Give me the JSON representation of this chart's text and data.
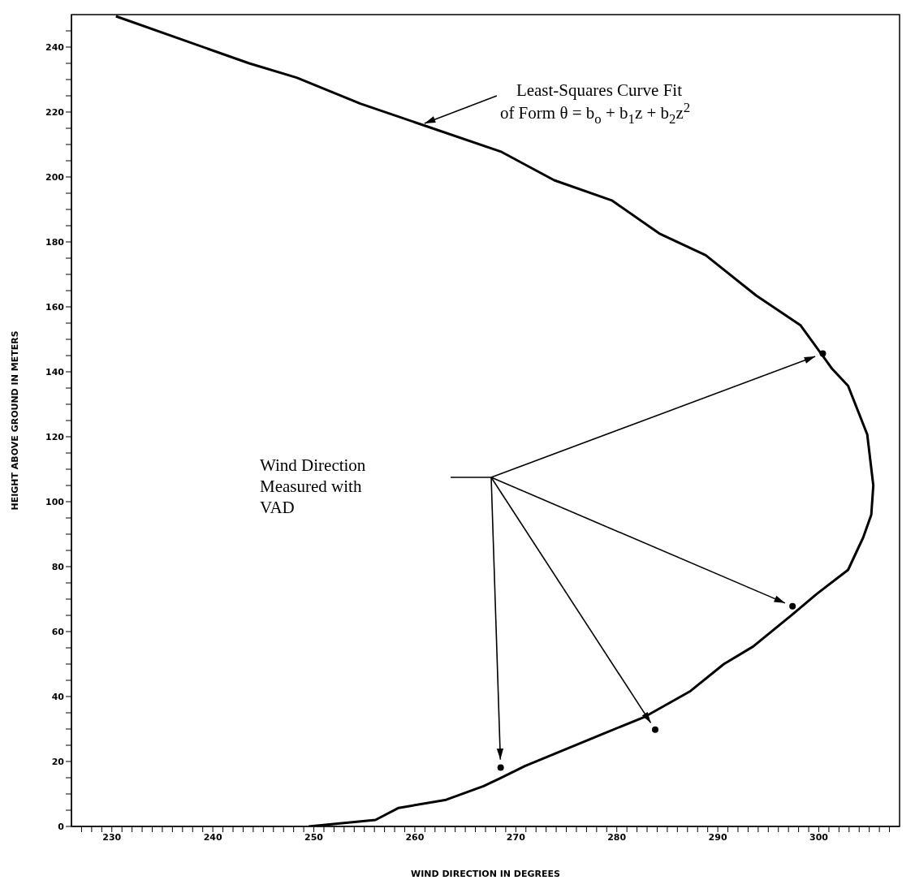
{
  "chart_data": {
    "type": "scatter",
    "xlabel": "WIND DIRECTION IN DEGREES",
    "ylabel": "HEIGHT ABOVE GROUND IN METERS",
    "xlim": [
      226,
      308
    ],
    "ylim": [
      0,
      250
    ],
    "xticks": [
      {
        "value": 227,
        "label": null
      },
      {
        "value": 228,
        "label": null
      },
      {
        "value": 229,
        "label": null
      },
      230,
      {
        "value": 231,
        "label": null
      },
      {
        "value": 232,
        "label": null
      },
      {
        "value": 233,
        "label": null
      },
      {
        "value": 234,
        "label": null
      },
      {
        "value": 235,
        "label": null
      },
      {
        "value": 236,
        "label": null
      },
      {
        "value": 237,
        "label": null
      },
      {
        "value": 238,
        "label": null
      },
      {
        "value": 239,
        "label": null
      },
      240,
      {
        "value": 241,
        "label": null
      },
      {
        "value": 242,
        "label": null
      },
      {
        "value": 243,
        "label": null
      },
      {
        "value": 244,
        "label": null
      },
      {
        "value": 245,
        "label": null
      },
      {
        "value": 246,
        "label": null
      },
      {
        "value": 247,
        "label": null
      },
      {
        "value": 248,
        "label": null
      },
      {
        "value": 249,
        "label": null
      },
      250,
      {
        "value": 251,
        "label": null
      },
      {
        "value": 252,
        "label": null
      },
      {
        "value": 253,
        "label": null
      },
      {
        "value": 254,
        "label": null
      },
      {
        "value": 255,
        "label": null
      },
      {
        "value": 256,
        "label": null
      },
      {
        "value": 257,
        "label": null
      },
      {
        "value": 258,
        "label": null
      },
      {
        "value": 259,
        "label": null
      },
      260,
      {
        "value": 261,
        "label": null
      },
      {
        "value": 262,
        "label": null
      },
      {
        "value": 263,
        "label": null
      },
      {
        "value": 264,
        "label": null
      },
      {
        "value": 265,
        "label": null
      },
      {
        "value": 266,
        "label": null
      },
      {
        "value": 267,
        "label": null
      },
      {
        "value": 268,
        "label": null
      },
      {
        "value": 269,
        "label": null
      },
      270,
      {
        "value": 271,
        "label": null
      },
      {
        "value": 272,
        "label": null
      },
      {
        "value": 273,
        "label": null
      },
      {
        "value": 274,
        "label": null
      },
      {
        "value": 275,
        "label": null
      },
      {
        "value": 276,
        "label": null
      },
      {
        "value": 277,
        "label": null
      },
      {
        "value": 278,
        "label": null
      },
      {
        "value": 279,
        "label": null
      },
      280,
      {
        "value": 281,
        "label": null
      },
      {
        "value": 282,
        "label": null
      },
      {
        "value": 283,
        "label": null
      },
      {
        "value": 284,
        "label": null
      },
      {
        "value": 285,
        "label": null
      },
      {
        "value": 286,
        "label": null
      },
      {
        "value": 287,
        "label": null
      },
      {
        "value": 288,
        "label": null
      },
      {
        "value": 289,
        "label": null
      },
      290,
      {
        "value": 291,
        "label": null
      },
      {
        "value": 292,
        "label": null
      },
      {
        "value": 293,
        "label": null
      },
      {
        "value": 294,
        "label": null
      },
      {
        "value": 295,
        "label": null
      },
      {
        "value": 296,
        "label": null
      },
      {
        "value": 297,
        "label": null
      },
      {
        "value": 298,
        "label": null
      },
      {
        "value": 299,
        "label": null
      },
      300,
      {
        "value": 301,
        "label": null
      },
      {
        "value": 302,
        "label": null
      },
      {
        "value": 303,
        "label": null
      },
      {
        "value": 304,
        "label": null
      },
      {
        "value": 305,
        "label": null
      },
      {
        "value": 306,
        "label": null
      },
      {
        "value": 307,
        "label": null
      }
    ],
    "yticks": [
      0,
      {
        "value": 5,
        "label": null
      },
      {
        "value": 10,
        "label": null
      },
      {
        "value": 15,
        "label": null
      },
      20,
      {
        "value": 25,
        "label": null
      },
      {
        "value": 30,
        "label": null
      },
      {
        "value": 35,
        "label": null
      },
      40,
      {
        "value": 45,
        "label": null
      },
      {
        "value": 50,
        "label": null
      },
      {
        "value": 55,
        "label": null
      },
      60,
      {
        "value": 65,
        "label": null
      },
      {
        "value": 70,
        "label": null
      },
      {
        "value": 75,
        "label": null
      },
      80,
      {
        "value": 85,
        "label": null
      },
      {
        "value": 90,
        "label": null
      },
      {
        "value": 95,
        "label": null
      },
      100,
      {
        "value": 105,
        "label": null
      },
      {
        "value": 110,
        "label": null
      },
      {
        "value": 115,
        "label": null
      },
      120,
      {
        "value": 125,
        "label": null
      },
      {
        "value": 130,
        "label": null
      },
      {
        "value": 135,
        "label": null
      },
      140,
      {
        "value": 145,
        "label": null
      },
      {
        "value": 150,
        "label": null
      },
      {
        "value": 155,
        "label": null
      },
      160,
      {
        "value": 165,
        "label": null
      },
      {
        "value": 170,
        "label": null
      },
      {
        "value": 175,
        "label": null
      },
      180,
      {
        "value": 185,
        "label": null
      },
      {
        "value": 190,
        "label": null
      },
      {
        "value": 195,
        "label": null
      },
      200,
      {
        "value": 205,
        "label": null
      },
      {
        "value": 210,
        "label": null
      },
      {
        "value": 215,
        "label": null
      },
      220,
      {
        "value": 225,
        "label": null
      },
      {
        "value": 230,
        "label": null
      },
      {
        "value": 235,
        "label": null
      },
      240,
      {
        "value": 245,
        "label": null
      }
    ],
    "grid": false,
    "series": [
      {
        "type": "line",
        "color": "#000000",
        "marker": "none",
        "x": [
          230.4,
          243.6,
          248.3,
          254.6,
          260.8,
          268.6,
          273.8,
          279.5,
          284.2,
          288.8,
          293.8,
          298.2,
          301.3,
          302.9,
          304.8,
          305.4,
          305.2,
          304.4,
          302.9,
          299.8,
          297.2,
          293.5,
          290.6,
          287.3,
          282.8,
          278.7,
          270.9,
          268.5,
          266.8,
          263.1,
          258.4,
          256.1,
          249.5
        ],
        "values": [
          249.5,
          235,
          230.6,
          222.6,
          216,
          207.7,
          199,
          192.8,
          182.6,
          175.9,
          163.5,
          154.3,
          141,
          135.7,
          120.7,
          105,
          96,
          89,
          79,
          71.6,
          64.8,
          55.4,
          50,
          41.7,
          33.8,
          28.6,
          18.6,
          14.9,
          12.4,
          8.2,
          5.7,
          2,
          0
        ]
      },
      {
        "type": "scatter",
        "color": "#000000",
        "marker": "circle",
        "x": [
          300.4,
          297.4,
          283.8,
          268.5
        ],
        "values": [
          145.6,
          67.8,
          29.8,
          18.1
        ]
      }
    ],
    "annotations": [
      "Least-Squares Curve Fit\nof Form θ = b$_{o}$ + b$_{1}$z + b$_{2}$z$^{2}$",
      "Wind Direction\nMeasured with\nVAD"
    ]
  }
}
